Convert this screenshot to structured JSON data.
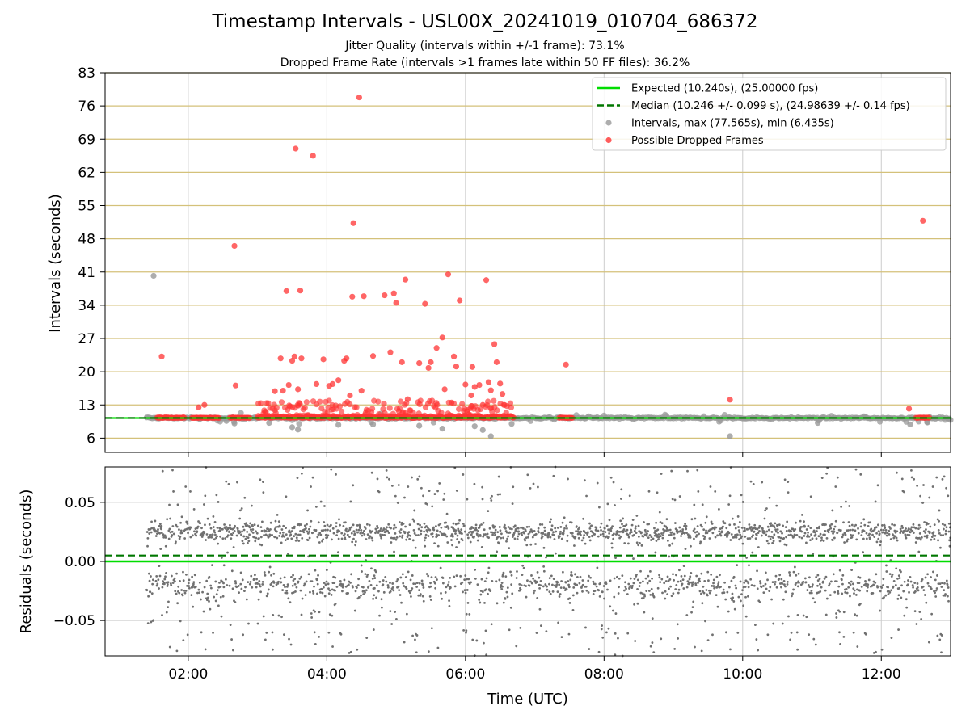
{
  "figure": {
    "title": "Timestamp Intervals - USL00X_20241019_010704_686372",
    "subtitle1": "Jitter Quality (intervals within +/-1 frame): 73.1%",
    "subtitle2": "Dropped Frame Rate (intervals >1 frames late within 50 FF files): 36.2%"
  },
  "chart_data": [
    {
      "type": "scatter",
      "panel": "intervals",
      "xlabel": "",
      "ylabel": "Intervals (seconds)",
      "xlim_hours": [
        0.8,
        13.0
      ],
      "ylim": [
        3,
        83
      ],
      "yticks": [
        6,
        13,
        20,
        27,
        34,
        41,
        48,
        55,
        62,
        69,
        76,
        83
      ],
      "ytick_labels": [
        "6",
        "13",
        "20",
        "27",
        "34",
        "41",
        "48",
        "55",
        "62",
        "69",
        "76",
        "83"
      ],
      "grid": "horizontal gold lines, vertical grey lines at hour ticks",
      "legend_position": "top-right",
      "expected_interval": 10.24,
      "median_interval": 10.246,
      "interval_max": 77.565,
      "interval_min": 6.435,
      "legend": [
        {
          "label": "Expected (10.240s), (25.00000 fps)",
          "kind": "line",
          "color": "#00dd00"
        },
        {
          "label": "Median (10.246 +/- 0.099 s), (24.98639 +/- 0.14 fps)",
          "kind": "dashed",
          "color": "#007700"
        },
        {
          "label": "Intervals, max (77.565s), min (6.435s)",
          "kind": "dot",
          "color": "#999999"
        },
        {
          "label": "Possible Dropped Frames",
          "kind": "dot",
          "color": "#ff3333"
        }
      ],
      "series": [
        {
          "name": "Intervals, max (77.565s), min (6.435s)",
          "color": "#999999",
          "x_time": [
            "01:30",
            "01:47",
            "02:10",
            "02:33",
            "02:40",
            "03:10",
            "03:30",
            "03:35",
            "04:10",
            "04:40",
            "05:20",
            "05:40",
            "06:08",
            "06:15",
            "06:22",
            "06:40",
            "07:30",
            "09:49",
            "11:05",
            "11:45",
            "12:25",
            "12:40"
          ],
          "y": [
            40.2,
            10.2,
            10.0,
            9.6,
            9.1,
            9.2,
            8.3,
            7.8,
            8.8,
            8.9,
            8.6,
            8.0,
            8.5,
            7.7,
            6.4,
            9.0,
            10.2,
            6.4,
            9.2,
            10.6,
            8.9,
            9.3
          ]
        },
        {
          "name": "Possible Dropped Frames",
          "color": "#ff3333",
          "x_time": [
            "01:37",
            "02:09",
            "02:14",
            "02:40",
            "02:41",
            "03:15",
            "03:20",
            "03:22",
            "03:25",
            "03:27",
            "03:28",
            "03:30",
            "03:32",
            "03:33",
            "03:35",
            "03:37",
            "03:38",
            "03:48",
            "03:51",
            "03:57",
            "04:02",
            "04:05",
            "04:10",
            "04:15",
            "04:17",
            "04:20",
            "04:22",
            "04:23",
            "04:28",
            "04:30",
            "04:32",
            "04:40",
            "04:50",
            "04:55",
            "04:58",
            "05:00",
            "05:05",
            "05:08",
            "05:10",
            "05:20",
            "05:25",
            "05:28",
            "05:30",
            "05:35",
            "05:40",
            "05:42",
            "05:45",
            "05:48",
            "05:50",
            "05:52",
            "05:55",
            "06:00",
            "06:05",
            "06:06",
            "06:08",
            "06:12",
            "06:15",
            "06:18",
            "06:20",
            "06:22",
            "06:25",
            "06:27",
            "06:30",
            "06:32",
            "07:27",
            "09:49",
            "12:24",
            "12:36"
          ],
          "y": [
            23.2,
            12.5,
            13.0,
            46.5,
            17.1,
            15.9,
            22.8,
            16.0,
            37.0,
            17.2,
            12.7,
            22.3,
            23.2,
            67.0,
            16.3,
            37.1,
            22.8,
            65.5,
            17.4,
            22.6,
            17.0,
            17.4,
            18.2,
            22.3,
            22.8,
            15.0,
            35.8,
            51.3,
            77.8,
            16.0,
            35.9,
            23.3,
            36.1,
            24.1,
            36.5,
            34.5,
            22.0,
            39.4,
            14.2,
            21.8,
            34.3,
            20.8,
            22.0,
            25.0,
            27.2,
            16.3,
            40.5,
            13.5,
            23.2,
            21.1,
            35.0,
            17.3,
            15.0,
            21.0,
            16.8,
            17.2,
            13.0,
            39.3,
            17.8,
            16.1,
            25.8,
            22.0,
            17.5,
            15.3,
            21.5,
            14.1,
            12.2,
            51.8
          ]
        }
      ]
    },
    {
      "type": "scatter",
      "panel": "residuals",
      "xlabel": "Time (UTC)",
      "ylabel": "Residuals (seconds)",
      "xlim_hours": [
        0.8,
        13.0
      ],
      "xticks_hours": [
        2,
        4,
        6,
        8,
        10,
        12
      ],
      "xtick_labels": [
        "02:00",
        "04:00",
        "06:00",
        "08:00",
        "10:00",
        "12:00"
      ],
      "ylim": [
        -0.08,
        0.08
      ],
      "yticks": [
        0.05,
        0.0,
        -0.05
      ],
      "ytick_labels": [
        "0.05",
        "0.00",
        "−0.05"
      ],
      "grid": true,
      "expected_residual": 0.0,
      "median_residual": 0.005,
      "point_color": "#707070",
      "x_range_hours": [
        1.4,
        13.0
      ],
      "residual_spread": 0.025
    }
  ],
  "colors": {
    "expected": "#00dd00",
    "median": "#007700",
    "intervals": "#999999",
    "dropped": "#ff3333",
    "hgrid_top": "#d4c17a",
    "grid": "#cccccc"
  }
}
